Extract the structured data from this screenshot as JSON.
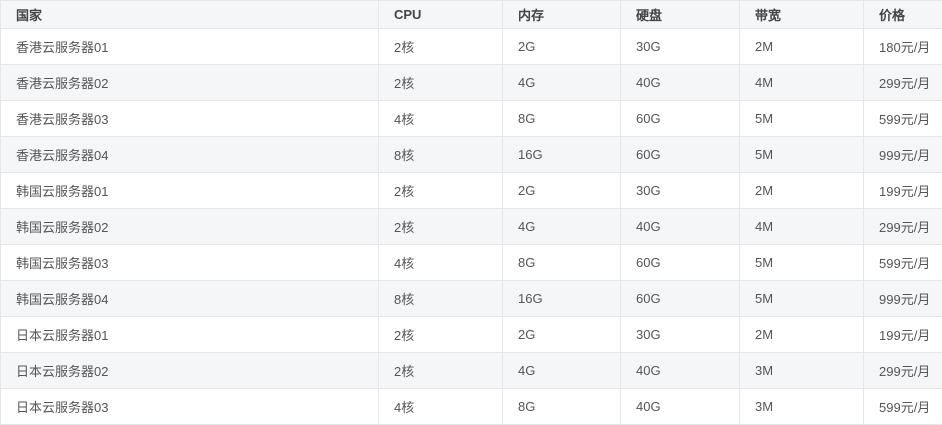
{
  "table": {
    "headers": [
      "国家",
      "CPU",
      "内存",
      "硬盘",
      "带宽",
      "价格"
    ],
    "rows": [
      [
        "香港云服务器01",
        "2核",
        "2G",
        "30G",
        "2M",
        "180元/月"
      ],
      [
        "香港云服务器02",
        "2核",
        "4G",
        "40G",
        "4M",
        "299元/月"
      ],
      [
        "香港云服务器03",
        "4核",
        "8G",
        "60G",
        "5M",
        "599元/月"
      ],
      [
        "香港云服务器04",
        "8核",
        "16G",
        "60G",
        "5M",
        "999元/月"
      ],
      [
        "韩国云服务器01",
        "2核",
        "2G",
        "30G",
        "2M",
        "199元/月"
      ],
      [
        "韩国云服务器02",
        "2核",
        "4G",
        "40G",
        "4M",
        "299元/月"
      ],
      [
        "韩国云服务器03",
        "4核",
        "8G",
        "60G",
        "5M",
        "599元/月"
      ],
      [
        "韩国云服务器04",
        "8核",
        "16G",
        "60G",
        "5M",
        "999元/月"
      ],
      [
        "日本云服务器01",
        "2核",
        "2G",
        "30G",
        "2M",
        "199元/月"
      ],
      [
        "日本云服务器02",
        "2核",
        "4G",
        "40G",
        "3M",
        "299元/月"
      ],
      [
        "日本云服务器03",
        "4核",
        "8G",
        "40G",
        "3M",
        "599元/月"
      ]
    ]
  },
  "colors": {
    "header_bg": "#f5f6f8",
    "stripe_bg": "#f5f6f8",
    "border": "#e4e6ea",
    "text": "#555555"
  }
}
